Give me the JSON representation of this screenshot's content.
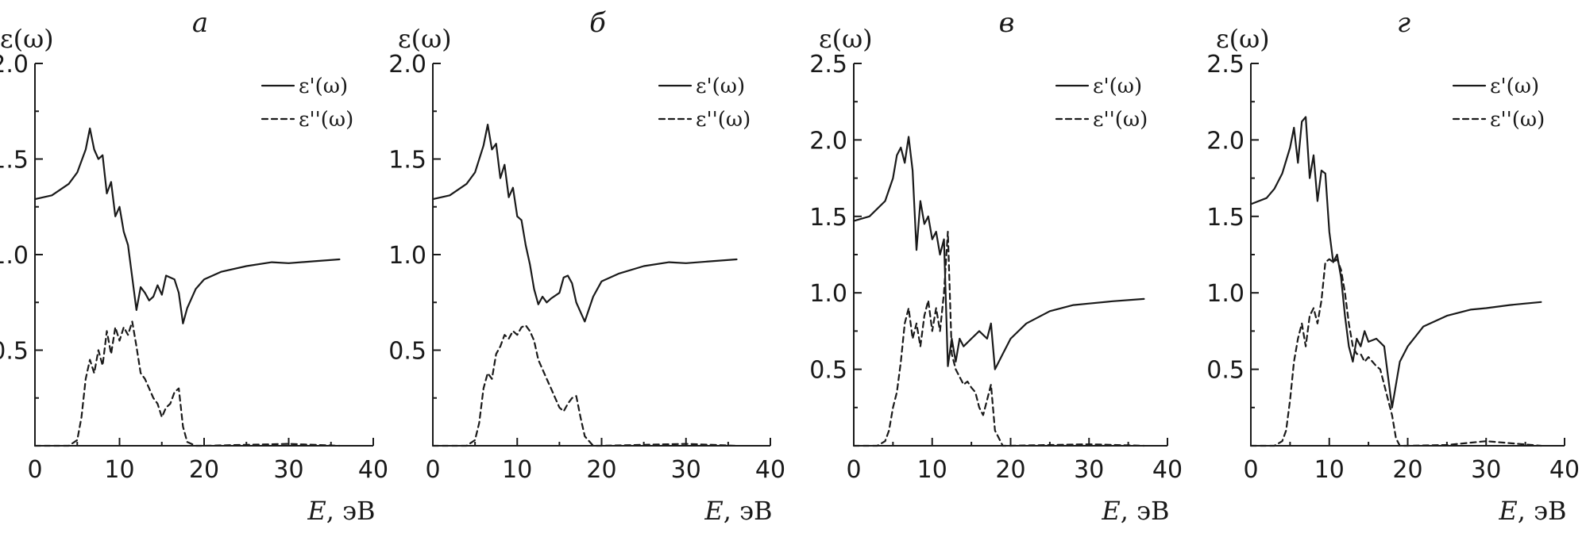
{
  "chart_data": [
    {
      "type": "line",
      "panel_label": "а",
      "ylabel": "ε(ω)",
      "xlabel_italic": "E",
      "xlabel_rest": ", эВ",
      "xlim": [
        0,
        40
      ],
      "ylim": [
        0,
        2.0
      ],
      "xticks": [
        0,
        10,
        20,
        30,
        40
      ],
      "yticks": [
        0.5,
        1.0,
        1.5,
        2.0
      ],
      "ytick_labels": [
        "0.5",
        "1.0",
        "1.5",
        "2.0"
      ],
      "legend_position": "top-right",
      "series": [
        {
          "name": "ε'(ω)",
          "style": "solid",
          "x": [
            0,
            2,
            4,
            5,
            6,
            6.5,
            7,
            7.5,
            8,
            8.5,
            9,
            9.5,
            10,
            10.5,
            11,
            11.5,
            12,
            12.5,
            13,
            13.5,
            14,
            14.5,
            15,
            15.5,
            16,
            16.5,
            17,
            17.5,
            18,
            19,
            20,
            22,
            25,
            28,
            30,
            33,
            36
          ],
          "y": [
            1.29,
            1.31,
            1.37,
            1.43,
            1.55,
            1.66,
            1.55,
            1.5,
            1.52,
            1.32,
            1.38,
            1.2,
            1.25,
            1.12,
            1.05,
            0.88,
            0.71,
            0.83,
            0.8,
            0.76,
            0.78,
            0.84,
            0.79,
            0.89,
            0.88,
            0.87,
            0.8,
            0.64,
            0.72,
            0.82,
            0.87,
            0.91,
            0.94,
            0.96,
            0.955,
            0.965,
            0.975
          ]
        },
        {
          "name": "ε''(ω)",
          "style": "dashed",
          "x": [
            0,
            4,
            5,
            5.5,
            6,
            6.5,
            7,
            7.5,
            8,
            8.5,
            9,
            9.5,
            10,
            10.5,
            11,
            11.5,
            12,
            12.5,
            13,
            13.5,
            14,
            14.5,
            15,
            15.5,
            16,
            16.5,
            17,
            17.5,
            18,
            19,
            20,
            25,
            30,
            36
          ],
          "y": [
            0,
            0,
            0.03,
            0.15,
            0.35,
            0.45,
            0.38,
            0.5,
            0.42,
            0.6,
            0.48,
            0.62,
            0.55,
            0.62,
            0.58,
            0.65,
            0.52,
            0.38,
            0.35,
            0.3,
            0.25,
            0.22,
            0.15,
            0.2,
            0.22,
            0.28,
            0.3,
            0.1,
            0.02,
            0,
            0,
            0.005,
            0.01,
            0
          ]
        }
      ]
    },
    {
      "type": "line",
      "panel_label": "б",
      "ylabel": "ε(ω)",
      "xlabel_italic": "E",
      "xlabel_rest": ", эВ",
      "xlim": [
        0,
        40
      ],
      "ylim": [
        0,
        2.0
      ],
      "xticks": [
        0,
        10,
        20,
        30,
        40
      ],
      "yticks": [
        0.5,
        1.0,
        1.5,
        2.0
      ],
      "ytick_labels": [
        "0.5",
        "1.0",
        "1.5",
        "2.0"
      ],
      "legend_position": "top-right",
      "series": [
        {
          "name": "ε'(ω)",
          "style": "solid",
          "x": [
            0,
            2,
            4,
            5,
            6,
            6.5,
            7,
            7.5,
            8,
            8.5,
            9,
            9.5,
            10,
            10.5,
            11,
            11.5,
            12,
            12.5,
            13,
            13.5,
            14,
            15,
            15.5,
            16,
            16.5,
            17,
            17.5,
            18,
            19,
            20,
            22,
            25,
            28,
            30,
            33,
            36
          ],
          "y": [
            1.29,
            1.31,
            1.37,
            1.43,
            1.57,
            1.68,
            1.55,
            1.58,
            1.4,
            1.47,
            1.3,
            1.35,
            1.2,
            1.18,
            1.05,
            0.95,
            0.82,
            0.74,
            0.78,
            0.75,
            0.77,
            0.8,
            0.88,
            0.89,
            0.85,
            0.75,
            0.7,
            0.65,
            0.78,
            0.86,
            0.9,
            0.94,
            0.96,
            0.955,
            0.965,
            0.975
          ]
        },
        {
          "name": "ε''(ω)",
          "style": "dashed",
          "x": [
            0,
            4,
            5,
            5.5,
            6,
            6.5,
            7,
            7.5,
            8,
            8.5,
            9,
            9.5,
            10,
            10.5,
            11,
            11.5,
            12,
            12.5,
            13,
            13.5,
            14,
            14.5,
            15,
            15.5,
            16,
            16.5,
            17,
            17.5,
            18,
            19,
            20,
            25,
            30,
            36
          ],
          "y": [
            0,
            0,
            0.03,
            0.12,
            0.3,
            0.38,
            0.35,
            0.48,
            0.52,
            0.58,
            0.56,
            0.6,
            0.58,
            0.62,
            0.63,
            0.6,
            0.55,
            0.45,
            0.4,
            0.35,
            0.3,
            0.25,
            0.2,
            0.18,
            0.22,
            0.25,
            0.26,
            0.15,
            0.05,
            0,
            0,
            0.005,
            0.01,
            0
          ]
        }
      ]
    },
    {
      "type": "line",
      "panel_label": "в",
      "ylabel": "ε(ω)",
      "xlabel_italic": "E",
      "xlabel_rest": ", эВ",
      "xlim": [
        0,
        40
      ],
      "ylim": [
        0,
        2.5
      ],
      "xticks": [
        0,
        10,
        20,
        30,
        40
      ],
      "yticks": [
        0.5,
        1.0,
        1.5,
        2.0,
        2.5
      ],
      "ytick_labels": [
        "0.5",
        "1.0",
        "1.5",
        "2.0",
        "2.5"
      ],
      "legend_position": "top-right",
      "series": [
        {
          "name": "ε'(ω)",
          "style": "solid",
          "x": [
            0,
            2,
            4,
            5,
            5.5,
            6,
            6.5,
            7,
            7.5,
            8,
            8.5,
            9,
            9.5,
            10,
            10.5,
            11,
            11.5,
            12,
            12.5,
            13,
            13.5,
            14,
            15,
            16,
            17,
            17.5,
            18,
            18.5,
            19,
            20,
            22,
            25,
            28,
            30,
            33,
            37
          ],
          "y": [
            1.47,
            1.5,
            1.6,
            1.75,
            1.9,
            1.95,
            1.85,
            2.02,
            1.8,
            1.28,
            1.6,
            1.45,
            1.5,
            1.35,
            1.4,
            1.25,
            1.35,
            0.52,
            0.7,
            0.55,
            0.7,
            0.65,
            0.7,
            0.75,
            0.7,
            0.8,
            0.5,
            0.55,
            0.6,
            0.7,
            0.8,
            0.88,
            0.92,
            0.93,
            0.945,
            0.96
          ]
        },
        {
          "name": "ε''(ω)",
          "style": "dashed",
          "x": [
            0,
            3,
            4,
            4.5,
            5,
            5.5,
            6,
            6.5,
            7,
            7.5,
            8,
            8.5,
            9,
            9.5,
            10,
            10.5,
            11,
            11.5,
            12,
            12.5,
            13,
            13.5,
            14,
            14.5,
            15,
            15.5,
            16,
            16.5,
            17,
            17.5,
            18,
            19,
            20,
            25,
            30,
            37
          ],
          "y": [
            0,
            0,
            0.03,
            0.1,
            0.25,
            0.35,
            0.55,
            0.8,
            0.9,
            0.7,
            0.8,
            0.65,
            0.85,
            0.95,
            0.75,
            0.9,
            0.75,
            1.0,
            1.4,
            0.6,
            0.5,
            0.45,
            0.4,
            0.42,
            0.38,
            0.35,
            0.25,
            0.2,
            0.3,
            0.4,
            0.1,
            0,
            0,
            0.005,
            0.01,
            0
          ]
        }
      ]
    },
    {
      "type": "line",
      "panel_label": "г",
      "ylabel": "ε(ω)",
      "xlabel_italic": "E",
      "xlabel_rest": ", эВ",
      "xlim": [
        0,
        40
      ],
      "ylim": [
        0,
        2.5
      ],
      "xticks": [
        0,
        10,
        20,
        30,
        40
      ],
      "yticks": [
        0.5,
        1.0,
        1.5,
        2.0,
        2.5
      ],
      "ytick_labels": [
        "0.5",
        "1.0",
        "1.5",
        "2.0",
        "2.5"
      ],
      "legend_position": "top-right",
      "series": [
        {
          "name": "ε'(ω)",
          "style": "solid",
          "x": [
            0,
            2,
            3,
            4,
            5,
            5.5,
            6,
            6.5,
            7,
            7.5,
            8,
            8.5,
            9,
            9.5,
            10,
            10.5,
            11,
            11.5,
            12,
            12.5,
            13,
            13.5,
            14,
            14.5,
            15,
            16,
            17,
            17.5,
            18,
            18.5,
            19,
            20,
            22,
            25,
            28,
            30,
            33,
            37
          ],
          "y": [
            1.58,
            1.62,
            1.68,
            1.78,
            1.95,
            2.08,
            1.85,
            2.12,
            2.15,
            1.75,
            1.9,
            1.6,
            1.8,
            1.78,
            1.4,
            1.2,
            1.25,
            1.1,
            0.85,
            0.65,
            0.55,
            0.7,
            0.65,
            0.75,
            0.68,
            0.7,
            0.65,
            0.45,
            0.25,
            0.4,
            0.55,
            0.65,
            0.78,
            0.85,
            0.89,
            0.9,
            0.92,
            0.94
          ]
        },
        {
          "name": "ε''(ω)",
          "style": "dashed",
          "x": [
            0,
            3,
            4,
            4.5,
            5,
            5.5,
            6,
            6.5,
            7,
            7.5,
            8,
            8.5,
            9,
            9.5,
            10,
            10.5,
            11,
            11.5,
            12,
            12.5,
            13,
            13.5,
            14,
            14.5,
            15,
            15.5,
            16,
            16.5,
            17,
            17.5,
            18,
            18.5,
            19,
            20,
            25,
            30,
            37
          ],
          "y": [
            0,
            0,
            0.03,
            0.1,
            0.3,
            0.55,
            0.7,
            0.8,
            0.65,
            0.85,
            0.9,
            0.8,
            0.95,
            1.2,
            1.22,
            1.2,
            1.22,
            1.15,
            1.0,
            0.8,
            0.65,
            0.6,
            0.6,
            0.55,
            0.58,
            0.55,
            0.52,
            0.5,
            0.4,
            0.3,
            0.2,
            0.05,
            0,
            0,
            0.005,
            0.03,
            0
          ]
        }
      ]
    }
  ]
}
